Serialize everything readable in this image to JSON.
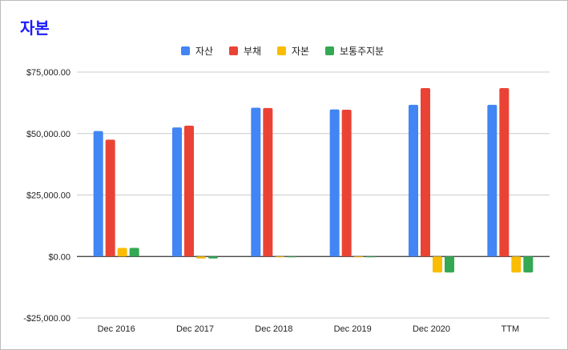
{
  "chart_data": {
    "type": "bar",
    "title": "자본",
    "categories": [
      "Dec 2016",
      "Dec 2017",
      "Dec 2018",
      "Dec 2019",
      "Dec 2020",
      "TTM"
    ],
    "series": [
      {
        "name": "자산",
        "color": "#4285f4",
        "values": [
          51000,
          52500,
          60500,
          59800,
          61700,
          61700
        ]
      },
      {
        "name": "부채",
        "color": "#ea4335",
        "values": [
          47500,
          53200,
          60400,
          59700,
          68500,
          68500
        ]
      },
      {
        "name": "자본",
        "color": "#fbbc04",
        "values": [
          3500,
          -800,
          0,
          0,
          -6500,
          -6500
        ]
      },
      {
        "name": "보통주지분",
        "color": "#34a853",
        "values": [
          3500,
          -800,
          0,
          0,
          -6500,
          -6500
        ]
      }
    ],
    "ylim": [
      -25000,
      75000
    ],
    "yticks": [
      75000,
      50000,
      25000,
      0,
      -25000
    ],
    "ytick_labels": [
      "$75,000.00",
      "$50,000.00",
      "$25,000.00",
      "$0.00",
      "-$25,000.00"
    ],
    "grid": true,
    "legend_position": "top"
  }
}
